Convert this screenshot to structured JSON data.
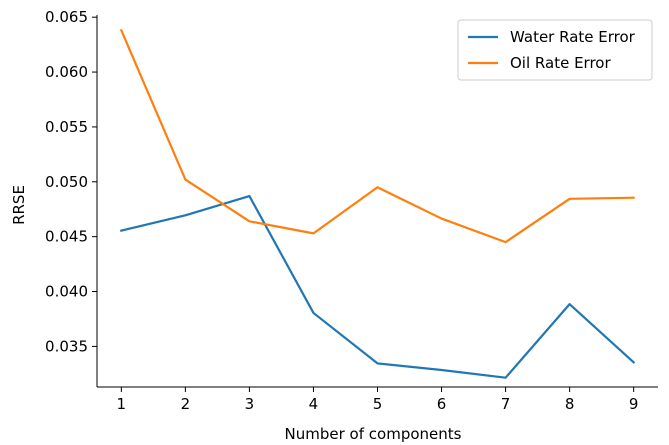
{
  "chart_data": {
    "type": "line",
    "title": "",
    "xlabel": "Number of components",
    "ylabel": "RRSE",
    "x": [
      1,
      2,
      3,
      4,
      5,
      6,
      7,
      8,
      9
    ],
    "xlim": [
      0.62,
      9.38
    ],
    "ylim": [
      0.0313,
      0.0652
    ],
    "xticks": [
      "1",
      "2",
      "3",
      "4",
      "5",
      "6",
      "7",
      "8",
      "9"
    ],
    "yticks": [
      "0.035",
      "0.040",
      "0.045",
      "0.050",
      "0.055",
      "0.060",
      "0.065"
    ],
    "ytick_values": [
      0.035,
      0.04,
      0.045,
      0.05,
      0.055,
      0.06,
      0.065
    ],
    "grid": false,
    "legend_position": "top-right",
    "series": [
      {
        "name": "Water Rate Error",
        "color": "#1f77b4",
        "values": [
          0.04555,
          0.04695,
          0.0487,
          0.03805,
          0.03345,
          0.03285,
          0.03215,
          0.03885,
          0.03355
        ]
      },
      {
        "name": "Oil Rate Error",
        "color": "#ff7f0e",
        "values": [
          0.0638,
          0.0502,
          0.0464,
          0.0453,
          0.0495,
          0.04665,
          0.0445,
          0.04845,
          0.04855
        ]
      }
    ]
  }
}
